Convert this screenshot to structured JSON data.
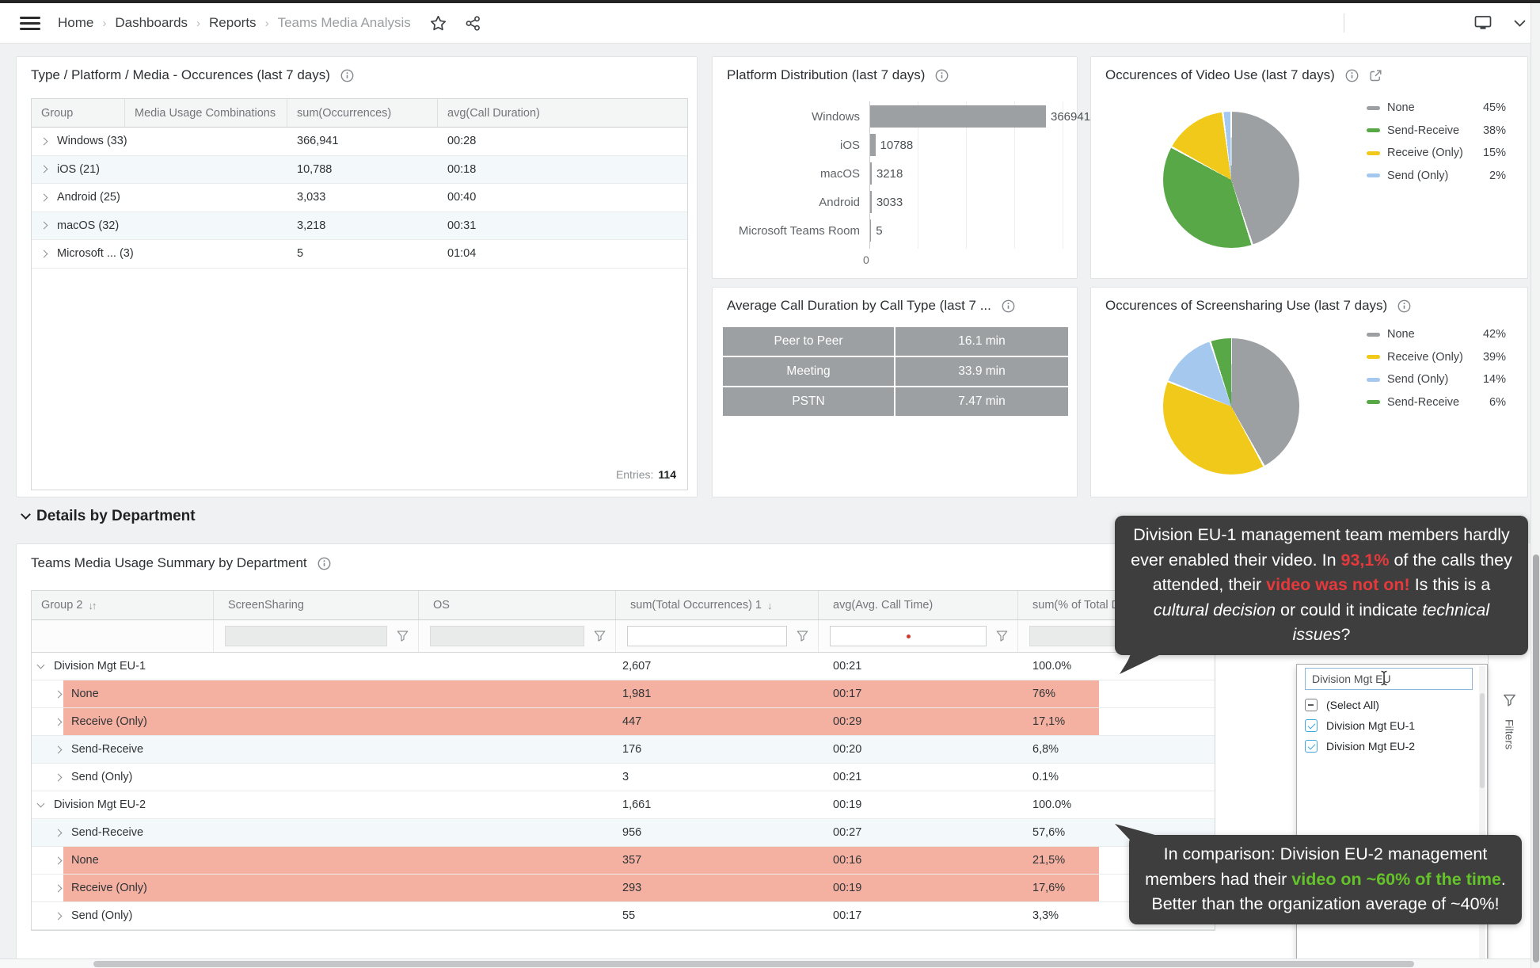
{
  "topbar": {
    "breadcrumb": [
      "Home",
      "Dashboards",
      "Reports",
      "Teams Media Analysis"
    ]
  },
  "panel_a": {
    "title": "Type / Platform / Media - Occurences (last 7 days)",
    "columns": [
      "Group",
      "Media Usage Combinations",
      "sum(Occurrences)",
      "avg(Call Duration)"
    ],
    "rows": [
      {
        "group": "Windows (33)",
        "media": "",
        "occurrences": "366,941",
        "duration": "00:28"
      },
      {
        "group": "iOS (21)",
        "media": "",
        "occurrences": "10,788",
        "duration": "00:18"
      },
      {
        "group": "Android (25)",
        "media": "",
        "occurrences": "3,033",
        "duration": "00:40"
      },
      {
        "group": "macOS (32)",
        "media": "",
        "occurrences": "3,218",
        "duration": "00:31"
      },
      {
        "group": "Microsoft ... (3)",
        "media": "",
        "occurrences": "5",
        "duration": "01:04"
      }
    ],
    "entries_label": "Entries:",
    "entries_value": "114"
  },
  "panel_platform": {
    "title": "Platform Distribution (last 7 days)",
    "categories": [
      "Windows",
      "iOS",
      "macOS",
      "Android",
      "Microsoft Teams Room"
    ],
    "values": [
      366941,
      10788,
      3218,
      3033,
      5
    ],
    "value_labels": [
      "366941",
      "10788",
      "3218",
      "3033",
      "5"
    ],
    "axis_zero": "0",
    "bar_color": "#9da0a2"
  },
  "panel_video": {
    "title": "Occurences of Video Use (last 7 days)",
    "slices": [
      {
        "label": "None",
        "pct": "45%",
        "value": 45,
        "color": "#9da0a2"
      },
      {
        "label": "Send-Receive",
        "pct": "38%",
        "value": 38,
        "color": "#58a847"
      },
      {
        "label": "Receive (Only)",
        "pct": "15%",
        "value": 15,
        "color": "#f0c91b"
      },
      {
        "label": "Send (Only)",
        "pct": "2%",
        "value": 2,
        "color": "#a5c8ef"
      }
    ]
  },
  "panel_duration": {
    "title": "Average Call Duration by Call Type (last 7 ...",
    "rows": [
      {
        "type": "Peer to Peer",
        "value": "16.1 min"
      },
      {
        "type": "Meeting",
        "value": "33.9 min"
      },
      {
        "type": "PSTN",
        "value": "7.47 min"
      }
    ]
  },
  "panel_screen": {
    "title": "Occurences of Screensharing Use (last 7 days)",
    "slices": [
      {
        "label": "None",
        "pct": "42%",
        "value": 42,
        "color": "#9da0a2"
      },
      {
        "label": "Receive (Only)",
        "pct": "39%",
        "value": 39,
        "color": "#f0c91b"
      },
      {
        "label": "Send (Only)",
        "pct": "14%",
        "value": 14,
        "color": "#a5c8ef"
      },
      {
        "label": "Send-Receive",
        "pct": "6%",
        "value": 6,
        "color": "#58a847"
      }
    ]
  },
  "section": {
    "title": "Details by Department"
  },
  "panel_dept": {
    "title": "Teams Media Usage Summary by Department",
    "columns": [
      {
        "label": "Group 2",
        "sort": "↓↑"
      },
      {
        "label": "ScreenSharing",
        "sort": ""
      },
      {
        "label": "OS",
        "sort": ""
      },
      {
        "label": "sum(Total Occurrences) 1",
        "sort": "↓"
      },
      {
        "label": "avg(Avg. Call Time)",
        "sort": ""
      },
      {
        "label": "sum(% of Total D",
        "sort": ""
      }
    ],
    "rows": [
      {
        "label": "Division Mgt EU-1",
        "level": 0,
        "occ": "2,607",
        "time": "00:21",
        "pct": "100.0%",
        "bg": "white",
        "hl": false
      },
      {
        "label": "None",
        "level": 1,
        "occ": "1,981",
        "time": "00:17",
        "pct": "76%",
        "bg": "white",
        "hl": true
      },
      {
        "label": "Receive (Only)",
        "level": 1,
        "occ": "447",
        "time": "00:29",
        "pct": "17,1%",
        "bg": "white",
        "hl": true
      },
      {
        "label": "Send-Receive",
        "level": 1,
        "occ": "176",
        "time": "00:20",
        "pct": "6,8%",
        "bg": "alt",
        "hl": false
      },
      {
        "label": "Send (Only)",
        "level": 1,
        "occ": "3",
        "time": "00:21",
        "pct": "0.1%",
        "bg": "white",
        "hl": false
      },
      {
        "label": "Division Mgt EU-2",
        "level": 0,
        "occ": "1,661",
        "time": "00:19",
        "pct": "100.0%",
        "bg": "white",
        "hl": false
      },
      {
        "label": "Send-Receive",
        "level": 1,
        "occ": "956",
        "time": "00:27",
        "pct": "57,6%",
        "bg": "alt",
        "hl": false
      },
      {
        "label": "None",
        "level": 1,
        "occ": "357",
        "time": "00:16",
        "pct": "21,5%",
        "bg": "white",
        "hl": true
      },
      {
        "label": "Receive (Only)",
        "level": 1,
        "occ": "293",
        "time": "00:19",
        "pct": "17,6%",
        "bg": "white",
        "hl": true
      },
      {
        "label": "Send (Only)",
        "level": 1,
        "occ": "55",
        "time": "00:17",
        "pct": "3,3%",
        "bg": "white",
        "hl": false
      }
    ]
  },
  "filter_panel": {
    "search_value": "Division Mgt EU",
    "items": [
      {
        "label": "(Select All)",
        "state": "indeterminate"
      },
      {
        "label": "Division Mgt EU-1",
        "state": "checked"
      },
      {
        "label": "Division Mgt EU-2",
        "state": "checked"
      }
    ],
    "tab_label": "Filters"
  },
  "tooltip_eu1": {
    "segments": [
      {
        "t": "Division EU-1 management team members hardly ever enabled their video. In "
      },
      {
        "t": "93,1%",
        "c": "red"
      },
      {
        "t": " of the calls they attended, their "
      },
      {
        "t": "video was not on!",
        "c": "red"
      },
      {
        "t": " Is this is a "
      },
      {
        "t": "cultural decision",
        "i": true
      },
      {
        "t": " or could it indicate "
      },
      {
        "t": "technical issues",
        "i": true
      },
      {
        "t": "?"
      }
    ]
  },
  "tooltip_eu2": {
    "segments": [
      {
        "t": "In comparison: Division EU-2 management members had their "
      },
      {
        "t": "video on ~60% of the time",
        "c": "green"
      },
      {
        "t": ". Better than the organization average of ~40%!"
      }
    ]
  },
  "colors": {
    "row_highlight": "#f4b1a1",
    "tooltip_red": "#e5393c",
    "tooltip_green": "#64c32a",
    "bar_gray": "#9da0a2"
  },
  "chart_data": [
    {
      "type": "bar",
      "orientation": "horizontal",
      "title": "Platform Distribution (last 7 days)",
      "categories": [
        "Windows",
        "iOS",
        "macOS",
        "Android",
        "Microsoft Teams Room"
      ],
      "values": [
        366941,
        10788,
        3218,
        3033,
        5
      ],
      "xlim": [
        0,
        400000
      ],
      "grid": true
    },
    {
      "type": "pie",
      "title": "Occurences of Video Use (last 7 days)",
      "labels": [
        "None",
        "Send-Receive",
        "Receive (Only)",
        "Send (Only)"
      ],
      "values": [
        45,
        38,
        15,
        2
      ],
      "unit": "%",
      "legend_position": "right"
    },
    {
      "type": "pie",
      "title": "Occurences of Screensharing Use (last 7 days)",
      "labels": [
        "None",
        "Receive (Only)",
        "Send (Only)",
        "Send-Receive"
      ],
      "values": [
        42,
        39,
        14,
        6
      ],
      "unit": "%",
      "legend_position": "right"
    },
    {
      "type": "table",
      "title": "Average Call Duration by Call Type (last 7 ...",
      "categories": [
        "Peer to Peer",
        "Meeting",
        "PSTN"
      ],
      "values_text": [
        "16.1 min",
        "33.9 min",
        "7.47 min"
      ]
    }
  ]
}
